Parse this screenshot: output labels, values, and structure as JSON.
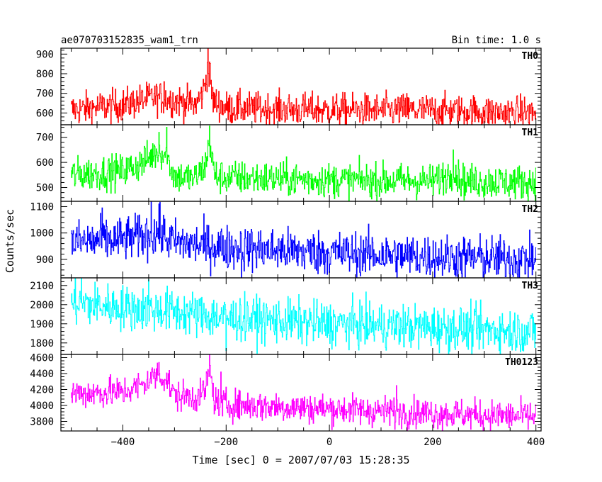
{
  "chart_data": {
    "type": "line",
    "title": "ae070703152835_wam1_trn",
    "bin_time_label": "Bin time: 1.0 s",
    "xlabel": "Time [sec] 0 = 2007/07/03 15:28:35",
    "ylabel": "Counts/sec",
    "xlim": [
      -520,
      410
    ],
    "x_ticks": [
      -400,
      -200,
      0,
      200,
      400
    ],
    "panels": [
      {
        "name": "TH0",
        "color": "#ff0000",
        "ylim": [
          540,
          930
        ],
        "y_ticks": [
          600,
          700,
          800,
          900
        ],
        "baseline": [
          [
            -500,
            615
          ],
          [
            -400,
            640
          ],
          [
            -340,
            680
          ],
          [
            -300,
            665
          ],
          [
            -260,
            640
          ],
          [
            -245,
            700
          ],
          [
            -235,
            830
          ],
          [
            -225,
            660
          ],
          [
            -200,
            625
          ],
          [
            0,
            615
          ],
          [
            200,
            612
          ],
          [
            400,
            600
          ]
        ],
        "noise": 42,
        "spikes": [
          [
            -235,
            930
          ],
          [
            -232,
            860
          ],
          [
            150,
            700
          ],
          [
            -320,
            760
          ]
        ]
      },
      {
        "name": "TH1",
        "color": "#00ff00",
        "ylim": [
          445,
          750
        ],
        "y_ticks": [
          500,
          600,
          700
        ],
        "baseline": [
          [
            -500,
            550
          ],
          [
            -400,
            565
          ],
          [
            -360,
            600
          ],
          [
            -330,
            650
          ],
          [
            -315,
            620
          ],
          [
            -300,
            545
          ],
          [
            -260,
            535
          ],
          [
            -240,
            590
          ],
          [
            -232,
            680
          ],
          [
            -222,
            545
          ],
          [
            -200,
            540
          ],
          [
            0,
            530
          ],
          [
            200,
            525
          ],
          [
            240,
            560
          ],
          [
            260,
            525
          ],
          [
            400,
            520
          ]
        ],
        "noise": 34,
        "spikes": [
          [
            -232,
            745
          ],
          [
            -315,
            740
          ],
          [
            -330,
            720
          ],
          [
            240,
            650
          ]
        ]
      },
      {
        "name": "TH2",
        "color": "#0000ff",
        "ylim": [
          830,
          1120
        ],
        "y_ticks": [
          900,
          1000,
          1100
        ],
        "baseline": [
          [
            -500,
            965
          ],
          [
            -400,
            975
          ],
          [
            -330,
            1000
          ],
          [
            -300,
            965
          ],
          [
            -200,
            945
          ],
          [
            0,
            925
          ],
          [
            200,
            910
          ],
          [
            400,
            900
          ]
        ],
        "noise": 42,
        "spikes": [
          [
            -345,
            1120
          ],
          [
            -330,
            1110
          ],
          [
            -440,
            1095
          ],
          [
            -170,
            830
          ]
        ]
      },
      {
        "name": "TH3",
        "color": "#00ffff",
        "ylim": [
          1740,
          2140
        ],
        "y_ticks": [
          1800,
          1900,
          2000,
          2100
        ],
        "baseline": [
          [
            -500,
            2010
          ],
          [
            -400,
            1985
          ],
          [
            -300,
            1965
          ],
          [
            -200,
            1930
          ],
          [
            0,
            1900
          ],
          [
            200,
            1880
          ],
          [
            400,
            1860
          ]
        ],
        "noise": 58,
        "spikes": [
          [
            -480,
            2140
          ],
          [
            -350,
            2130
          ],
          [
            -200,
            1760
          ]
        ]
      },
      {
        "name": "TH0123",
        "color": "#ff00ff",
        "ylim": [
          3680,
          4640
        ],
        "y_ticks": [
          3800,
          4000,
          4200,
          4400,
          4600
        ],
        "baseline": [
          [
            -500,
            4150
          ],
          [
            -400,
            4170
          ],
          [
            -360,
            4260
          ],
          [
            -335,
            4390
          ],
          [
            -315,
            4330
          ],
          [
            -300,
            4120
          ],
          [
            -250,
            4110
          ],
          [
            -238,
            4250
          ],
          [
            -232,
            4450
          ],
          [
            -222,
            4050
          ],
          [
            -200,
            4010
          ],
          [
            0,
            3960
          ],
          [
            200,
            3900
          ],
          [
            400,
            3860
          ]
        ],
        "noise": 95,
        "spikes": [
          [
            -232,
            4640
          ],
          [
            -330,
            4540
          ],
          [
            130,
            4250
          ],
          [
            -210,
            4420
          ]
        ]
      }
    ]
  }
}
